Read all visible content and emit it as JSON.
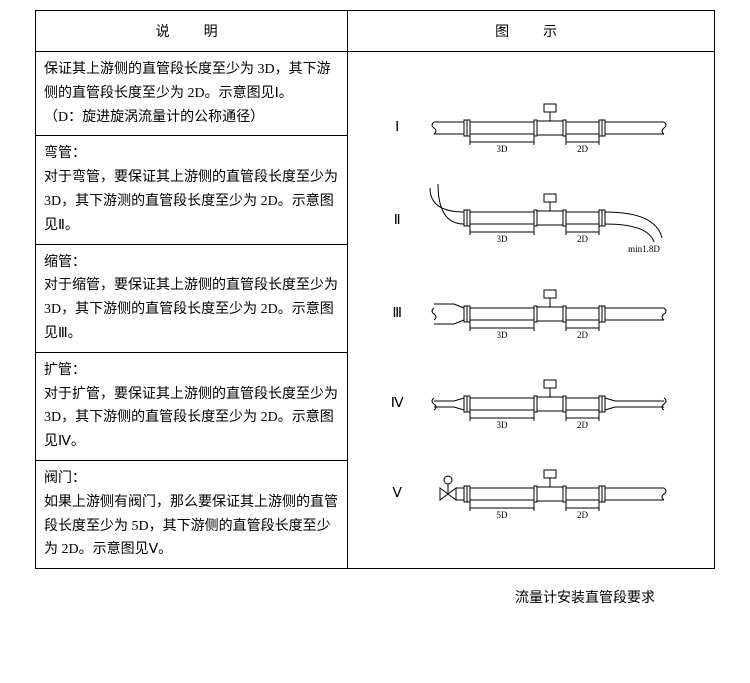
{
  "table": {
    "headers": {
      "desc": "说　明",
      "fig": "图　示"
    },
    "rows": [
      {
        "text": "保证其上游侧的直管段长度至少为 3D，其下游侧的直管段长度至少为 2D。示意图见Ⅰ。\n（D：旋进旋涡流量计的公称通径）"
      },
      {
        "text": "弯管：\n对于弯管，要保证其上游侧的直管段长度至少为 3D，其下游测的直管段长度至少为 2D。示意图见Ⅱ。"
      },
      {
        "text": "缩管：\n对于缩管，要保证其上游侧的直管段长度至少为 3D，其下游侧的直管段长度至少为 2D。示意图见Ⅲ。"
      },
      {
        "text": "扩管：\n对于扩管，要保证其上游侧的直管段长度至少为 3D，其下游侧的直管段长度至少为 2D。示意图见Ⅳ。"
      },
      {
        "text": "阀门：\n如果上游侧有阀门，那么要保证其上游侧的直管段长度至少为 5D，其下游侧的直管段长度至少为 2D。示意图见Ⅴ。"
      }
    ]
  },
  "diagrams": {
    "stroke": "#000000",
    "label_fontsize": 9,
    "items": [
      {
        "roman": "Ⅰ",
        "type": "straight",
        "upstream_label": "3D",
        "downstream_label": "2D"
      },
      {
        "roman": "Ⅱ",
        "type": "bend",
        "upstream_label": "3D",
        "downstream_label": "2D",
        "note": "min1.8D"
      },
      {
        "roman": "Ⅲ",
        "type": "reducer",
        "upstream_label": "3D",
        "downstream_label": "2D"
      },
      {
        "roman": "Ⅳ",
        "type": "expander",
        "upstream_label": "3D",
        "downstream_label": "2D"
      },
      {
        "roman": "Ⅴ",
        "type": "valve",
        "upstream_label": "5D",
        "downstream_label": "2D"
      }
    ]
  },
  "caption": "流量计安装直管段要求"
}
